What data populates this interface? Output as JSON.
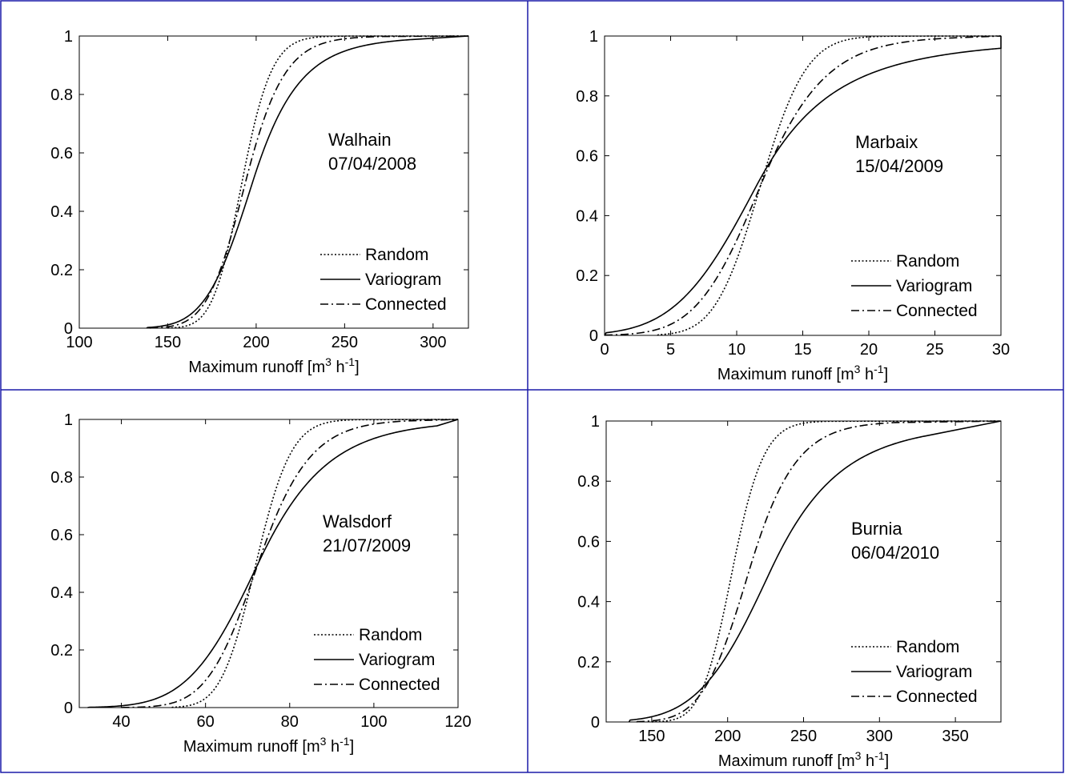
{
  "colors": {
    "frame": "#1a1aa8",
    "line": "#000000",
    "background": "#ffffff"
  },
  "chart_data": [
    {
      "type": "line",
      "title": "",
      "annotation": [
        "Walhain",
        "07/04/2008"
      ],
      "xlabel": {
        "text": "Maximum runoff [m",
        "sup1": "3",
        "mid": " h",
        "sup2": "-1",
        "end": "]"
      },
      "ylabel": "",
      "xlim": [
        100,
        320
      ],
      "ylim": [
        0,
        1
      ],
      "xticks": [
        100,
        150,
        200,
        250,
        300
      ],
      "yticks": [
        0,
        0.2,
        0.4,
        0.6,
        0.8,
        1
      ],
      "grid": false,
      "legend": "lower-right",
      "series": [
        {
          "name": "Random",
          "style": "dotted",
          "mu": 192,
          "sigma": 13,
          "skew": 0.2,
          "xmin": 150,
          "xmax": 258
        },
        {
          "name": "Variogram",
          "style": "solid",
          "mu": 198,
          "sigma": 21,
          "skew": 0.6,
          "xmin": 138,
          "xmax": 288
        },
        {
          "name": "Connected",
          "style": "dashdot",
          "mu": 194,
          "sigma": 17,
          "skew": 0.35,
          "xmin": 140,
          "xmax": 272
        }
      ]
    },
    {
      "type": "line",
      "title": "",
      "annotation": [
        "Marbaix",
        "15/04/2009"
      ],
      "xlabel": {
        "text": "Maximum runoff [m",
        "sup1": "3",
        "mid": " h",
        "sup2": "-1",
        "end": "]"
      },
      "ylabel": "",
      "xlim": [
        0,
        30
      ],
      "ylim": [
        0,
        1
      ],
      "xticks": [
        0,
        5,
        10,
        15,
        20,
        25,
        30
      ],
      "yticks": [
        0,
        0.2,
        0.4,
        0.6,
        0.8,
        1
      ],
      "grid": false,
      "legend": "lower-right",
      "series": [
        {
          "name": "Random",
          "style": "dotted",
          "mu": 11.8,
          "sigma": 2.7,
          "skew": 0.1,
          "xmin": 4,
          "xmax": 22
        },
        {
          "name": "Variogram",
          "style": "solid",
          "mu": 11.5,
          "sigma": 4.8,
          "skew": 0.9,
          "xmin": 0,
          "xmax": 30
        },
        {
          "name": "Connected",
          "style": "dashdot",
          "mu": 11.8,
          "sigma": 3.8,
          "skew": 0.4,
          "xmin": 0,
          "xmax": 27
        }
      ]
    },
    {
      "type": "line",
      "title": "",
      "annotation": [
        "Walsdorf",
        "21/07/2009"
      ],
      "xlabel": {
        "text": "Maximum runoff [m",
        "sup1": "3",
        "mid": " h",
        "sup2": "-1",
        "end": "]"
      },
      "ylabel": "",
      "xlim": [
        30,
        120
      ],
      "ylim": [
        0,
        1
      ],
      "xticks": [
        40,
        60,
        80,
        100,
        120
      ],
      "yticks": [
        0,
        0.2,
        0.4,
        0.6,
        0.8,
        1
      ],
      "grid": false,
      "legend": "lower-right",
      "series": [
        {
          "name": "Random",
          "style": "dotted",
          "mu": 72,
          "sigma": 6.5,
          "skew": 0.15,
          "xmin": 52,
          "xmax": 96
        },
        {
          "name": "Variogram",
          "style": "solid",
          "mu": 72.5,
          "sigma": 13,
          "skew": 0.55,
          "xmin": 32,
          "xmax": 115
        },
        {
          "name": "Connected",
          "style": "dashdot",
          "mu": 72.5,
          "sigma": 9.5,
          "skew": 0.35,
          "xmin": 40,
          "xmax": 108
        }
      ]
    },
    {
      "type": "line",
      "title": "",
      "annotation": [
        "Burnia",
        "06/04/2010"
      ],
      "xlabel": {
        "text": "Maximum runoff [m",
        "sup1": "3",
        "mid": " h",
        "sup2": "-1",
        "end": "]"
      },
      "ylabel": "",
      "xlim": [
        120,
        380
      ],
      "ylim": [
        0,
        1
      ],
      "xticks": [
        150,
        200,
        250,
        300,
        350
      ],
      "yticks": [
        0,
        0.2,
        0.4,
        0.6,
        0.8,
        1
      ],
      "grid": false,
      "legend": "lower-right",
      "series": [
        {
          "name": "Random",
          "style": "dotted",
          "mu": 203,
          "sigma": 16,
          "skew": 0.2,
          "xmin": 150,
          "xmax": 268
        },
        {
          "name": "Variogram",
          "style": "solid",
          "mu": 228,
          "sigma": 37,
          "skew": 0.7,
          "xmin": 135,
          "xmax": 330
        },
        {
          "name": "Connected",
          "style": "dashdot",
          "mu": 214,
          "sigma": 24,
          "skew": 0.4,
          "xmin": 140,
          "xmax": 310
        }
      ]
    }
  ]
}
